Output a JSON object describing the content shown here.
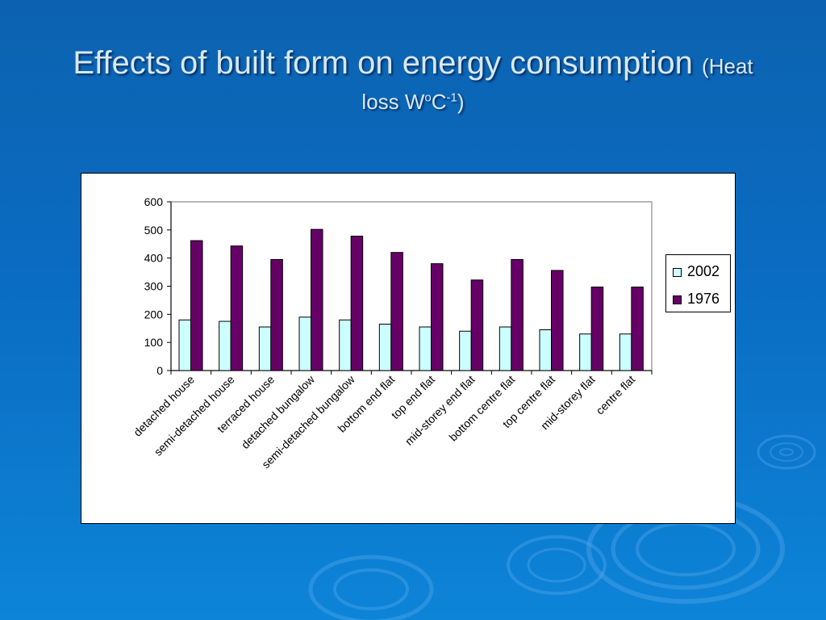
{
  "slide": {
    "title_main": "Effects of built form on energy consumption",
    "title_sub_open": "(Heat",
    "title_sub_loss": "loss W",
    "title_sub_o": "o",
    "title_sub_c": "C",
    "title_sub_exp": "-1",
    "title_sub_close": ")"
  },
  "chart_data": {
    "type": "bar",
    "categories": [
      "detached house",
      "semi-detached house",
      "terraced house",
      "detached bungalow",
      "semi-detached bungalow",
      "bottom end flat",
      "top end flat",
      "mid-storey end flat",
      "bottom centre flat",
      "top centre flat",
      "mid-storey flat",
      "centre flat"
    ],
    "series": [
      {
        "name": "2002",
        "color": "#ccffff",
        "values": [
          180,
          175,
          155,
          190,
          180,
          165,
          155,
          140,
          155,
          145,
          130,
          130
        ]
      },
      {
        "name": "1976",
        "color": "#660066",
        "values": [
          462,
          443,
          395,
          502,
          478,
          420,
          380,
          322,
          395,
          356,
          297,
          297
        ]
      }
    ],
    "ylim": [
      0,
      600
    ],
    "yticks": [
      "0",
      "100",
      "200",
      "300",
      "400",
      "500",
      "600"
    ],
    "legend_position": "right",
    "grid": false
  }
}
